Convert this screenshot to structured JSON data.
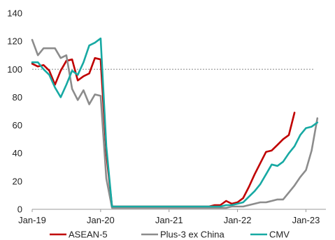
{
  "chart_data": {
    "type": "line",
    "title": "",
    "xlabel": "",
    "ylabel": "",
    "ylim": [
      0,
      140
    ],
    "y_ticks": [
      "0",
      "20",
      "40",
      "60",
      "80",
      "100",
      "120",
      "140"
    ],
    "x_ticks": [
      "Jan-19",
      "Jan-20",
      "Jan-21",
      "Jan-22",
      "Jan-23"
    ],
    "x_start": "2019-01",
    "reference_line": {
      "y": 100,
      "style": "dotted",
      "color": "#888888"
    },
    "grid": false,
    "legend_position": "bottom",
    "series": [
      {
        "name": "ASEAN-5",
        "color": "#c00000",
        "x": [
          "2019-01",
          "2019-02",
          "2019-03",
          "2019-04",
          "2019-05",
          "2019-06",
          "2019-07",
          "2019-08",
          "2019-09",
          "2019-10",
          "2019-11",
          "2019-12",
          "2020-01",
          "2020-02",
          "2020-03",
          "2020-04",
          "2020-05",
          "2020-06",
          "2020-07",
          "2020-08",
          "2020-09",
          "2020-10",
          "2020-11",
          "2020-12",
          "2021-01",
          "2021-02",
          "2021-03",
          "2021-04",
          "2021-05",
          "2021-06",
          "2021-07",
          "2021-08",
          "2021-09",
          "2021-10",
          "2021-11",
          "2021-12",
          "2022-01",
          "2022-02",
          "2022-03",
          "2022-04",
          "2022-05",
          "2022-06",
          "2022-07",
          "2022-08",
          "2022-09",
          "2022-10",
          "2022-11",
          "2022-12"
        ],
        "values": [
          104,
          102,
          103,
          99,
          89,
          99,
          106,
          107,
          92,
          95,
          97,
          108,
          107,
          40,
          2,
          2,
          2,
          2,
          2,
          2,
          2,
          2,
          2,
          2,
          2,
          2,
          2,
          2,
          2,
          2,
          2,
          2,
          3,
          3,
          6,
          4,
          5,
          8,
          16,
          25,
          33,
          41,
          42,
          46,
          50,
          53,
          69,
          null
        ]
      },
      {
        "name": "Plus-3 ex China",
        "color": "#8c8c8c",
        "x": [
          "2019-01",
          "2019-02",
          "2019-03",
          "2019-04",
          "2019-05",
          "2019-06",
          "2019-07",
          "2019-08",
          "2019-09",
          "2019-10",
          "2019-11",
          "2019-12",
          "2020-01",
          "2020-02",
          "2020-03",
          "2020-04",
          "2020-05",
          "2020-06",
          "2020-07",
          "2020-08",
          "2020-09",
          "2020-10",
          "2020-11",
          "2020-12",
          "2021-01",
          "2021-02",
          "2021-03",
          "2021-04",
          "2021-05",
          "2021-06",
          "2021-07",
          "2021-08",
          "2021-09",
          "2021-10",
          "2021-11",
          "2021-12",
          "2022-01",
          "2022-02",
          "2022-03",
          "2022-04",
          "2022-05",
          "2022-06",
          "2022-07",
          "2022-08",
          "2022-09",
          "2022-10",
          "2022-11",
          "2022-12",
          "2023-01",
          "2023-02",
          "2023-03"
        ],
        "values": [
          121,
          110,
          115,
          115,
          115,
          108,
          110,
          86,
          78,
          85,
          75,
          82,
          81,
          22,
          1,
          1,
          1,
          1,
          1,
          1,
          1,
          1,
          1,
          1,
          1,
          1,
          1,
          1,
          1,
          1,
          1,
          1,
          1,
          1,
          1,
          2,
          2,
          2,
          3,
          4,
          5,
          5,
          6,
          7,
          7,
          12,
          17,
          23,
          28,
          42,
          65
        ]
      },
      {
        "name": "CMV",
        "color": "#17a9a3",
        "x": [
          "2019-01",
          "2019-02",
          "2019-03",
          "2019-04",
          "2019-05",
          "2019-06",
          "2019-07",
          "2019-08",
          "2019-09",
          "2019-10",
          "2019-11",
          "2019-12",
          "2020-01",
          "2020-02",
          "2020-03",
          "2020-04",
          "2020-05",
          "2020-06",
          "2020-07",
          "2020-08",
          "2020-09",
          "2020-10",
          "2020-11",
          "2020-12",
          "2021-01",
          "2021-02",
          "2021-03",
          "2021-04",
          "2021-05",
          "2021-06",
          "2021-07",
          "2021-08",
          "2021-09",
          "2021-10",
          "2021-11",
          "2021-12",
          "2022-01",
          "2022-02",
          "2022-03",
          "2022-04",
          "2022-05",
          "2022-06",
          "2022-07",
          "2022-08",
          "2022-09",
          "2022-10",
          "2022-11",
          "2022-12",
          "2023-01",
          "2023-02",
          "2023-03"
        ],
        "values": [
          105,
          105,
          100,
          96,
          87,
          80,
          89,
          99,
          96,
          105,
          117,
          119,
          122,
          45,
          2,
          2,
          2,
          2,
          2,
          2,
          2,
          2,
          2,
          2,
          2,
          2,
          2,
          2,
          2,
          2,
          2,
          2,
          2,
          2,
          3,
          3,
          4,
          5,
          9,
          13,
          18,
          25,
          32,
          31,
          34,
          40,
          45,
          53,
          58,
          59,
          62
        ]
      }
    ]
  }
}
